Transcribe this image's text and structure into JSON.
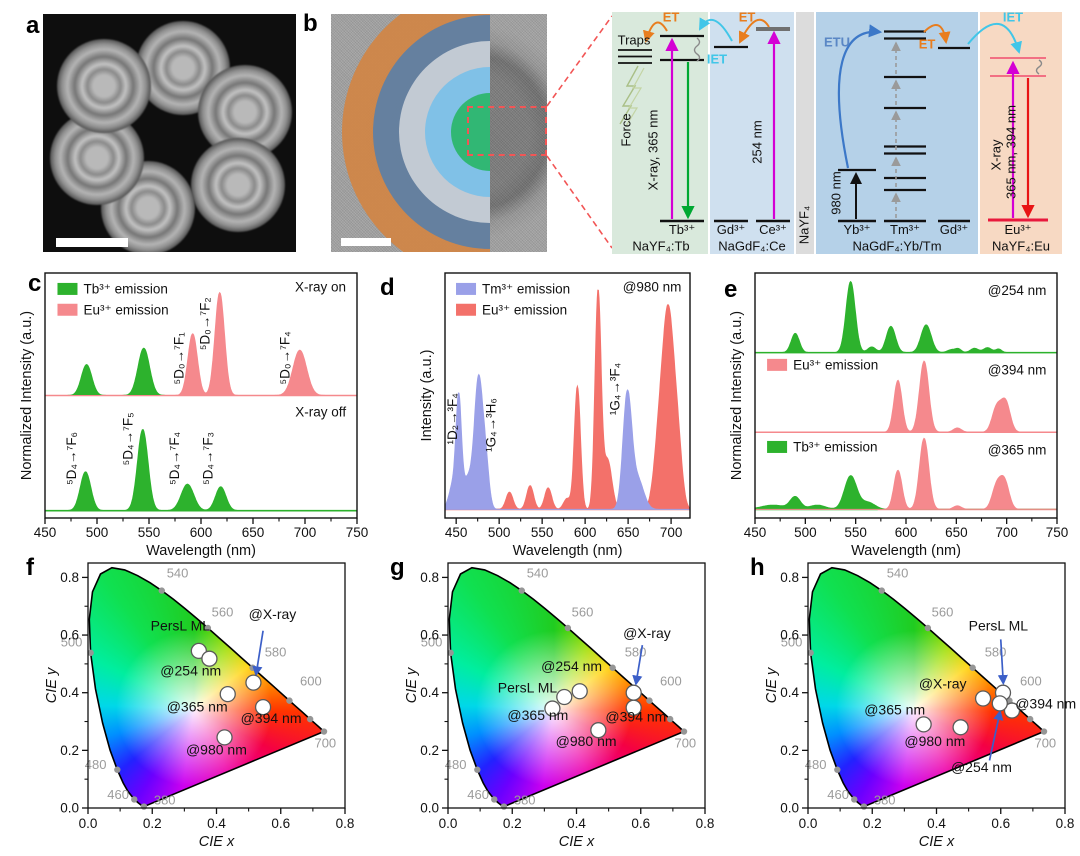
{
  "panels": {
    "a": "a",
    "b": "b",
    "c": "c",
    "d": "d",
    "e": "e",
    "f": "f",
    "g": "g",
    "h": "h"
  },
  "diagram": {
    "traps": "Traps",
    "force": "Force",
    "etu": "ETU",
    "et1": "ET",
    "et2": "ET",
    "et3": "ET",
    "iet1": "IET",
    "iet2": "IET",
    "xray365": "X-ray, 365 nm",
    "nm254": "254 nm",
    "nm980": "980 nm",
    "xray": "X-ray",
    "nm365394": "365 nm, 394 nm",
    "tb_ion": "Tb³⁺",
    "gd_ion": "Gd³⁺",
    "ce_ion": "Ce³⁺",
    "yb_ion": "Yb³⁺",
    "tm_ion": "Tm³⁺",
    "gd_ion2": "Gd³⁺",
    "eu_ion": "Eu³⁺",
    "tb_host": "NaYF₄:Tb",
    "ce_host": "NaGdF₄:Ce",
    "nayf4": "NaYF₄",
    "ybtm_host": "NaGdF₄:Yb/Tm",
    "eu_host": "NaYF₄:Eu",
    "colors": {
      "magenta": "#d400d4",
      "green_arrow": "#00a832",
      "red_arrow": "#e81414",
      "orange_et": "#e87d1e",
      "cyan_iet": "#41c6e8",
      "blue_etu": "#3c78c8",
      "tb_bg": "#d9e9dc",
      "ce_bg": "#cfe0ef",
      "nayf4_bg": "#dcdcdc",
      "ybtm_bg": "#b5d1e8",
      "eu_bg": "#f7d9c3",
      "dashed_red": "#f25555",
      "arrow_blue": "#3c5fc8"
    }
  },
  "chart_data": {
    "spectra": [
      {
        "id": "c",
        "type": "area",
        "xlabel": "Wavelength (nm)",
        "ylabel": "Normalized Intensity (a.u.)",
        "xlim": [
          450,
          750
        ],
        "xticks": [
          450,
          500,
          550,
          600,
          650,
          700,
          750
        ],
        "legend": [
          {
            "label": "Tb³⁺ emission",
            "color": "#2db22d",
            "fx": 0.04,
            "fy": 0.935
          },
          {
            "label": "Eu³⁺ emission",
            "color": "#f5898d",
            "fx": 0.04,
            "fy": 0.85
          }
        ],
        "traces": [
          {
            "baseline": 0.5,
            "amp": 0.42,
            "baseline_colors": [
              [
                "#f5898d",
                450,
                750
              ]
            ],
            "series": [
              {
                "color": "#2db22d",
                "peaks": [
                  [
                    490,
                    0.3,
                    5
                  ],
                  [
                    545,
                    0.46,
                    5.5
                  ]
                ]
              },
              {
                "color": "#f5898d",
                "peaks": [
                  [
                    592,
                    0.6,
                    4.5
                  ],
                  [
                    618,
                    1.0,
                    4.5
                  ],
                  [
                    695,
                    0.44,
                    6.5
                  ]
                ]
              }
            ]
          },
          {
            "baseline": 0.03,
            "amp": 0.36,
            "baseline_colors": [
              [
                "#2db22d",
                450,
                750
              ]
            ],
            "series": [
              {
                "color": "#2db22d",
                "peaks": [
                  [
                    489,
                    0.44,
                    5
                  ],
                  [
                    544,
                    0.92,
                    5
                  ],
                  [
                    587,
                    0.3,
                    6
                  ],
                  [
                    619,
                    0.27,
                    5
                  ]
                ]
              }
            ]
          }
        ],
        "annotations": [
          {
            "text": "X-ray on",
            "fx": 0.965,
            "fy": 0.925,
            "anchor": "end"
          },
          {
            "text": "X-ray off",
            "fx": 0.965,
            "fy": 0.415,
            "anchor": "end"
          },
          {
            "text": "⁵D₀→⁷F₁",
            "nm": 583,
            "fy": 0.545,
            "rot": 1
          },
          {
            "text": "⁵D₀→⁷F₂",
            "nm": 608,
            "fy": 0.685,
            "rot": 1
          },
          {
            "text": "⁵D₀→⁷F₄",
            "nm": 685,
            "fy": 0.545,
            "rot": 1
          },
          {
            "text": "⁵D₄→⁷F₆",
            "nm": 480,
            "fy": 0.135,
            "rot": 1
          },
          {
            "text": "⁵D₄→⁷F₅",
            "nm": 534,
            "fy": 0.215,
            "rot": 1
          },
          {
            "text": "⁵D₄→⁷F₄",
            "nm": 579,
            "fy": 0.135,
            "rot": 1
          },
          {
            "text": "⁵D₄→⁷F₃",
            "nm": 611,
            "fy": 0.135,
            "rot": 1
          }
        ]
      },
      {
        "id": "d",
        "type": "area",
        "xlabel": "Wavelength (nm)",
        "ylabel": "Intensity (a.u.)",
        "xlim": [
          437,
          722
        ],
        "xticks": [
          450,
          500,
          550,
          600,
          650,
          700
        ],
        "legend": [
          {
            "label": "Tm³⁺ emission",
            "color": "#9aa0e8",
            "fx": 0.045,
            "fy": 0.935
          },
          {
            "label": "Eu³⁺ emission",
            "color": "#f3716a",
            "fx": 0.045,
            "fy": 0.85
          }
        ],
        "traces": [
          {
            "baseline": 0.035,
            "amp": 0.88,
            "baseline_colors": [
              [
                "#f3716a",
                437,
                722
              ]
            ],
            "series": [
              {
                "color": "#f3716a",
                "peaks": [
                  [
                    512,
                    0.08,
                    4
                  ],
                  [
                    536,
                    0.11,
                    4
                  ],
                  [
                    557,
                    0.1,
                    4
                  ],
                  [
                    579,
                    0.05,
                    4
                  ],
                  [
                    591,
                    0.57,
                    3.5
                  ],
                  [
                    615,
                    1.0,
                    3.5
                  ],
                  [
                    626,
                    0.23,
                    5
                  ],
                  [
                    686,
                    0.3,
                    6
                  ],
                  [
                    697,
                    0.87,
                    6.5
                  ],
                  [
                    708,
                    0.25,
                    5
                  ]
                ]
              },
              {
                "color": "#9aa0e8",
                "peaks": [
                  [
                    447,
                    0.12,
                    5
                  ],
                  [
                    453,
                    0.44,
                    3
                  ],
                  [
                    464,
                    0.15,
                    7
                  ],
                  [
                    476,
                    0.56,
                    4.5
                  ],
                  [
                    484,
                    0.22,
                    4
                  ],
                  [
                    649,
                    0.52,
                    5
                  ],
                  [
                    661,
                    0.14,
                    7
                  ]
                ]
              }
            ]
          }
        ],
        "annotations": [
          {
            "text": "@980 nm",
            "fx": 0.965,
            "fy": 0.925,
            "anchor": "end"
          },
          {
            "text": "¹D₂→³F₄",
            "nm": 451,
            "fy": 0.3,
            "rot": 1
          },
          {
            "text": "¹G₄→³H₆",
            "nm": 496,
            "fy": 0.27,
            "rot": 1
          },
          {
            "text": "¹G₄→³F₄",
            "nm": 640,
            "fy": 0.42,
            "rot": 1
          }
        ]
      },
      {
        "id": "e",
        "type": "area",
        "xlabel": "Wavelength (nm)",
        "ylabel": "Normalized Intensity (a.u.)",
        "xlim": [
          450,
          750
        ],
        "xticks": [
          450,
          500,
          550,
          600,
          650,
          700,
          750
        ],
        "legend": [
          {
            "label": "Eu³⁺ emission",
            "color": "#f5898d",
            "fx": 0.04,
            "fy": 0.625
          },
          {
            "label": "Tb³⁺ emission",
            "color": "#2db22d",
            "fx": 0.04,
            "fy": 0.29
          }
        ],
        "traces": [
          {
            "baseline": 0.675,
            "amp": 0.29,
            "baseline_colors": [
              [
                "#2db22d",
                450,
                750
              ]
            ],
            "series": [
              {
                "color": "#2db22d",
                "peaks": [
                  [
                    490,
                    0.27,
                    4
                  ],
                  [
                    545,
                    1.0,
                    4.5
                  ],
                  [
                    566,
                    0.08,
                    4
                  ],
                  [
                    585,
                    0.37,
                    4.5
                  ],
                  [
                    620,
                    0.39,
                    5
                  ],
                  [
                    645,
                    0.04,
                    4
                  ],
                  [
                    652,
                    0.05,
                    3
                  ],
                  [
                    668,
                    0.06,
                    4
                  ],
                  [
                    681,
                    0.07,
                    4
                  ],
                  [
                    692,
                    0.05,
                    3
                  ]
                ]
              }
            ]
          },
          {
            "baseline": 0.35,
            "amp": 0.29,
            "baseline_colors": [
              [
                "#f5898d",
                450,
                750
              ]
            ],
            "series": [
              {
                "color": "#f5898d",
                "peaks": [
                  [
                    592,
                    0.73,
                    4
                  ],
                  [
                    618,
                    1.0,
                    4.5
                  ],
                  [
                    651,
                    0.06,
                    4
                  ],
                  [
                    690,
                    0.34,
                    4.5
                  ],
                  [
                    699,
                    0.42,
                    4.5
                  ]
                ]
              }
            ]
          },
          {
            "baseline": 0.035,
            "amp": 0.29,
            "baseline_colors": [
              [
                "#2db22d",
                450,
                572
              ],
              [
                "#f5898d",
                572,
                750
              ]
            ],
            "series": [
              {
                "color": "#2db22d",
                "peaks": [
                  [
                    468,
                    0.06,
                    12
                  ],
                  [
                    490,
                    0.17,
                    5
                  ],
                  [
                    512,
                    0.06,
                    8
                  ],
                  [
                    545,
                    0.47,
                    6
                  ],
                  [
                    562,
                    0.1,
                    7
                  ]
                ]
              },
              {
                "color": "#f5898d",
                "peaks": [
                  [
                    592,
                    0.55,
                    4
                  ],
                  [
                    618,
                    1.0,
                    4.5
                  ],
                  [
                    651,
                    0.05,
                    4
                  ],
                  [
                    690,
                    0.32,
                    4.5
                  ],
                  [
                    698,
                    0.38,
                    4.5
                  ]
                ]
              }
            ]
          }
        ],
        "annotations": [
          {
            "text": "@254 nm",
            "fx": 0.965,
            "fy": 0.91,
            "anchor": "end"
          },
          {
            "text": "@394 nm",
            "fx": 0.965,
            "fy": 0.585,
            "anchor": "end"
          },
          {
            "text": "@365 nm",
            "fx": 0.965,
            "fy": 0.26,
            "anchor": "end"
          }
        ]
      }
    ],
    "cie_common": {
      "type": "cie-scatter",
      "xlabel": "CIE x",
      "ylabel": "CIE y",
      "xlim": [
        0,
        0.8
      ],
      "ylim": [
        0,
        0.85
      ],
      "tick_labels": [
        "0.0",
        "0.2",
        "0.4",
        "0.6",
        "0.8"
      ],
      "locus_labels": [
        {
          "t": "540",
          "x": 0.245,
          "y": 0.8
        },
        {
          "t": "560",
          "x": 0.385,
          "y": 0.665
        },
        {
          "t": "580",
          "x": 0.55,
          "y": 0.525
        },
        {
          "t": "600",
          "x": 0.66,
          "y": 0.425
        },
        {
          "t": "700",
          "x": 0.705,
          "y": 0.21
        },
        {
          "t": "500",
          "x": -0.085,
          "y": 0.56
        },
        {
          "t": "480",
          "x": -0.01,
          "y": 0.135
        },
        {
          "t": "460",
          "x": 0.06,
          "y": 0.032
        },
        {
          "t": "380",
          "x": 0.205,
          "y": 0.012
        }
      ],
      "dot_nms": [
        380,
        460,
        480,
        500,
        540,
        560,
        580,
        600,
        620,
        700
      ]
    },
    "cie_panels": [
      {
        "id": "f",
        "points": [
          [
            0.345,
            0.545
          ],
          [
            0.378,
            0.518
          ],
          [
            0.515,
            0.435
          ],
          [
            0.435,
            0.395
          ],
          [
            0.545,
            0.35
          ],
          [
            0.425,
            0.245
          ]
        ],
        "labels": [
          {
            "text": "PersL ML",
            "x": 0.195,
            "y": 0.615
          },
          {
            "text": "@254 nm",
            "x": 0.225,
            "y": 0.46
          },
          {
            "text": "@X-ray",
            "x": 0.5,
            "y": 0.655,
            "arrow": [
              0.545,
              0.615,
              0.523,
              0.462
            ]
          },
          {
            "text": "@365 nm",
            "x": 0.245,
            "y": 0.335
          },
          {
            "text": "@394 nm",
            "x": 0.475,
            "y": 0.295
          },
          {
            "text": "@980 nm",
            "x": 0.305,
            "y": 0.185
          }
        ]
      },
      {
        "id": "g",
        "points": [
          [
            0.41,
            0.405
          ],
          [
            0.362,
            0.385
          ],
          [
            0.325,
            0.345
          ],
          [
            0.578,
            0.4
          ],
          [
            0.578,
            0.348
          ],
          [
            0.468,
            0.27
          ]
        ],
        "labels": [
          {
            "text": "@254 nm",
            "x": 0.29,
            "y": 0.475
          },
          {
            "text": "PersL ML",
            "x": 0.155,
            "y": 0.4
          },
          {
            "text": "@365 nm",
            "x": 0.185,
            "y": 0.305
          },
          {
            "text": "@X-ray",
            "x": 0.545,
            "y": 0.59,
            "arrow": [
              0.605,
              0.565,
              0.585,
              0.43
            ]
          },
          {
            "text": "@394 nm",
            "x": 0.49,
            "y": 0.3
          },
          {
            "text": "@980 nm",
            "x": 0.335,
            "y": 0.215
          }
        ]
      },
      {
        "id": "h",
        "points": [
          [
            0.36,
            0.29
          ],
          [
            0.475,
            0.28
          ],
          [
            0.545,
            0.38
          ],
          [
            0.607,
            0.4
          ],
          [
            0.635,
            0.338
          ],
          [
            0.597,
            0.363
          ]
        ],
        "labels": [
          {
            "text": "@365 nm",
            "x": 0.175,
            "y": 0.325
          },
          {
            "text": "@980 nm",
            "x": 0.3,
            "y": 0.215
          },
          {
            "text": "@X-ray",
            "x": 0.345,
            "y": 0.415
          },
          {
            "text": "PersL ML",
            "x": 0.5,
            "y": 0.615,
            "arrow": [
              0.6,
              0.585,
              0.608,
              0.432
            ]
          },
          {
            "text": "@394 nm",
            "x": 0.645,
            "y": 0.345
          },
          {
            "text": "@254 nm",
            "x": 0.445,
            "y": 0.125,
            "arrow": [
              0.565,
              0.165,
              0.598,
              0.335
            ]
          }
        ]
      }
    ]
  }
}
